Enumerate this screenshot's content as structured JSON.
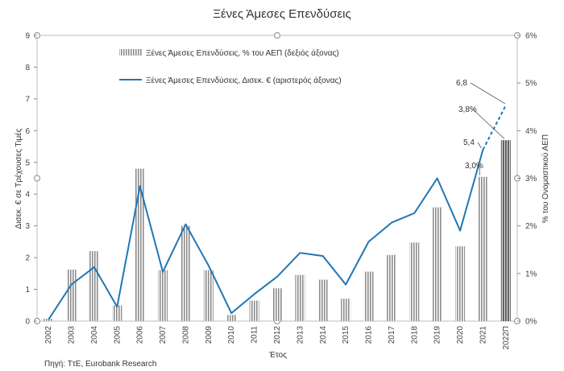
{
  "chart_data": {
    "type": "bar+line",
    "title": "Ξένες Άμεσες Επενδύσεις",
    "xlabel": "Έτος",
    "ylabel_left": "Δισεκ. € σε Τρέχουσες Τιμές",
    "ylabel_right": "% του Ονομαστικού ΑΕΠ",
    "ylim_left": [
      0,
      9
    ],
    "ylim_right": [
      0,
      6
    ],
    "yticks_left": [
      "0",
      "1",
      "2",
      "3",
      "4",
      "5",
      "6",
      "7",
      "8",
      "9"
    ],
    "yticks_right": [
      "0%",
      "1%",
      "2%",
      "3%",
      "4%",
      "5%",
      "6%"
    ],
    "categories": [
      "2002",
      "2003",
      "2004",
      "2005",
      "2006",
      "2007",
      "2008",
      "2009",
      "2010",
      "2011",
      "2012",
      "2013",
      "2014",
      "2015",
      "2016",
      "2017",
      "2018",
      "2019",
      "2020",
      "2021",
      "2022Π"
    ],
    "series": [
      {
        "name": "Ξένες Άμεσες Επενδύσεις, % του ΑΕΠ (δεξιός άξονας)",
        "kind": "bar",
        "axis": "right",
        "values": [
          0.05,
          1.08,
          1.47,
          0.33,
          3.2,
          1.07,
          2.0,
          1.07,
          0.13,
          0.43,
          0.69,
          0.97,
          0.87,
          0.47,
          1.04,
          1.39,
          1.65,
          2.39,
          1.57,
          3.03,
          3.8
        ]
      },
      {
        "name": "Ξένες Άμεσες Επενδύσεις, Δισεκ. € (αριστερός άξονας)",
        "kind": "line",
        "axis": "left",
        "values": [
          0.05,
          1.15,
          1.7,
          0.45,
          4.25,
          1.55,
          3.05,
          1.75,
          0.25,
          0.85,
          1.4,
          2.15,
          2.05,
          1.15,
          2.5,
          3.1,
          3.4,
          4.5,
          2.85,
          5.4,
          6.8
        ]
      }
    ],
    "annotations": {
      "line_2021": "5,4",
      "line_2022": "6,8",
      "bar_2021": "3,0%",
      "bar_2022": "3,8%"
    },
    "legend_position": "top-center",
    "grid": false
  },
  "source": "Πηγή: ΤτΕ, Eurobank Research"
}
